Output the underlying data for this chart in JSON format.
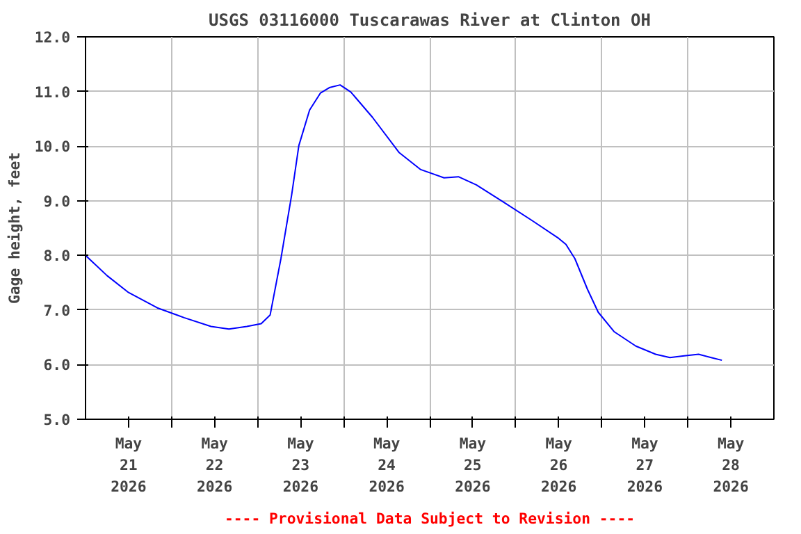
{
  "chart_data": {
    "type": "line",
    "title": "USGS 03116000 Tuscarawas River at Clinton OH",
    "ylabel": "Gage height, feet",
    "annotations": [
      "---- Provisional Data Subject to Revision ----"
    ],
    "x": [
      "2026-05-21T00:00",
      "2026-05-21T06:00",
      "2026-05-21T12:00",
      "2026-05-21T20:00",
      "2026-05-22T03:30",
      "2026-05-22T11:00",
      "2026-05-22T16:00",
      "2026-05-22T21:00",
      "2026-05-23T01:00",
      "2026-05-23T03:30",
      "2026-05-23T06:30",
      "2026-05-23T09:30",
      "2026-05-23T11:30",
      "2026-05-23T14:30",
      "2026-05-23T17:30",
      "2026-05-23T20:00",
      "2026-05-23T23:00",
      "2026-05-24T02:00",
      "2026-05-24T08:00",
      "2026-05-24T15:30",
      "2026-05-24T21:30",
      "2026-05-25T04:00",
      "2026-05-25T08:00",
      "2026-05-25T13:00",
      "2026-05-25T20:30",
      "2026-05-26T04:30",
      "2026-05-26T12:00",
      "2026-05-26T14:00",
      "2026-05-26T16:30",
      "2026-05-26T20:00",
      "2026-05-26T23:00",
      "2026-05-27T03:30",
      "2026-05-27T09:30",
      "2026-05-27T15:00",
      "2026-05-27T19:00",
      "2026-05-27T23:00",
      "2026-05-28T03:00",
      "2026-05-28T06:30",
      "2026-05-28T09:30"
    ],
    "series": [
      {
        "color": "#0000ff",
        "values": [
          8.0,
          7.63,
          7.32,
          7.04,
          6.86,
          6.7,
          6.65,
          6.7,
          6.75,
          6.91,
          7.94,
          9.11,
          10.01,
          10.66,
          10.97,
          11.07,
          11.12,
          10.99,
          10.53,
          9.88,
          9.57,
          9.42,
          9.44,
          9.29,
          8.98,
          8.64,
          8.31,
          8.2,
          7.94,
          7.38,
          6.96,
          6.6,
          6.34,
          6.19,
          6.13,
          6.16,
          6.19,
          6.13,
          6.08
        ]
      }
    ],
    "xlim": [
      "2026-05-21T00:00",
      "2026-05-29T00:00"
    ],
    "xticks": [
      {
        "value": "2026-05-21T12:00",
        "label": "May\n21\n2026"
      },
      {
        "value": "2026-05-22T00:00",
        "label": null
      },
      {
        "value": "2026-05-22T12:00",
        "label": "May\n22\n2026"
      },
      {
        "value": "2026-05-23T00:00",
        "label": null
      },
      {
        "value": "2026-05-23T12:00",
        "label": "May\n23\n2026"
      },
      {
        "value": "2026-05-24T00:00",
        "label": null
      },
      {
        "value": "2026-05-24T12:00",
        "label": "May\n24\n2026"
      },
      {
        "value": "2026-05-25T00:00",
        "label": null
      },
      {
        "value": "2026-05-25T12:00",
        "label": "May\n25\n2026"
      },
      {
        "value": "2026-05-26T00:00",
        "label": null
      },
      {
        "value": "2026-05-26T12:00",
        "label": "May\n26\n2026"
      },
      {
        "value": "2026-05-27T00:00",
        "label": null
      },
      {
        "value": "2026-05-27T12:00",
        "label": "May\n27\n2026"
      },
      {
        "value": "2026-05-28T00:00",
        "label": null
      },
      {
        "value": "2026-05-28T12:00",
        "label": "May\n28\n2026"
      }
    ],
    "ylim": [
      5.0,
      12.0
    ],
    "yticks": [
      {
        "value": 5,
        "label": "5.0"
      },
      {
        "value": 6,
        "label": "6.0"
      },
      {
        "value": 7,
        "label": "7.0"
      },
      {
        "value": 8,
        "label": "8.0"
      },
      {
        "value": 9,
        "label": "9.0"
      },
      {
        "value": 10,
        "label": "10.0"
      },
      {
        "value": 11,
        "label": "11.0"
      },
      {
        "value": 12,
        "label": "12.0"
      }
    ],
    "grid": true,
    "marker": "none",
    "line_style": "solid"
  }
}
